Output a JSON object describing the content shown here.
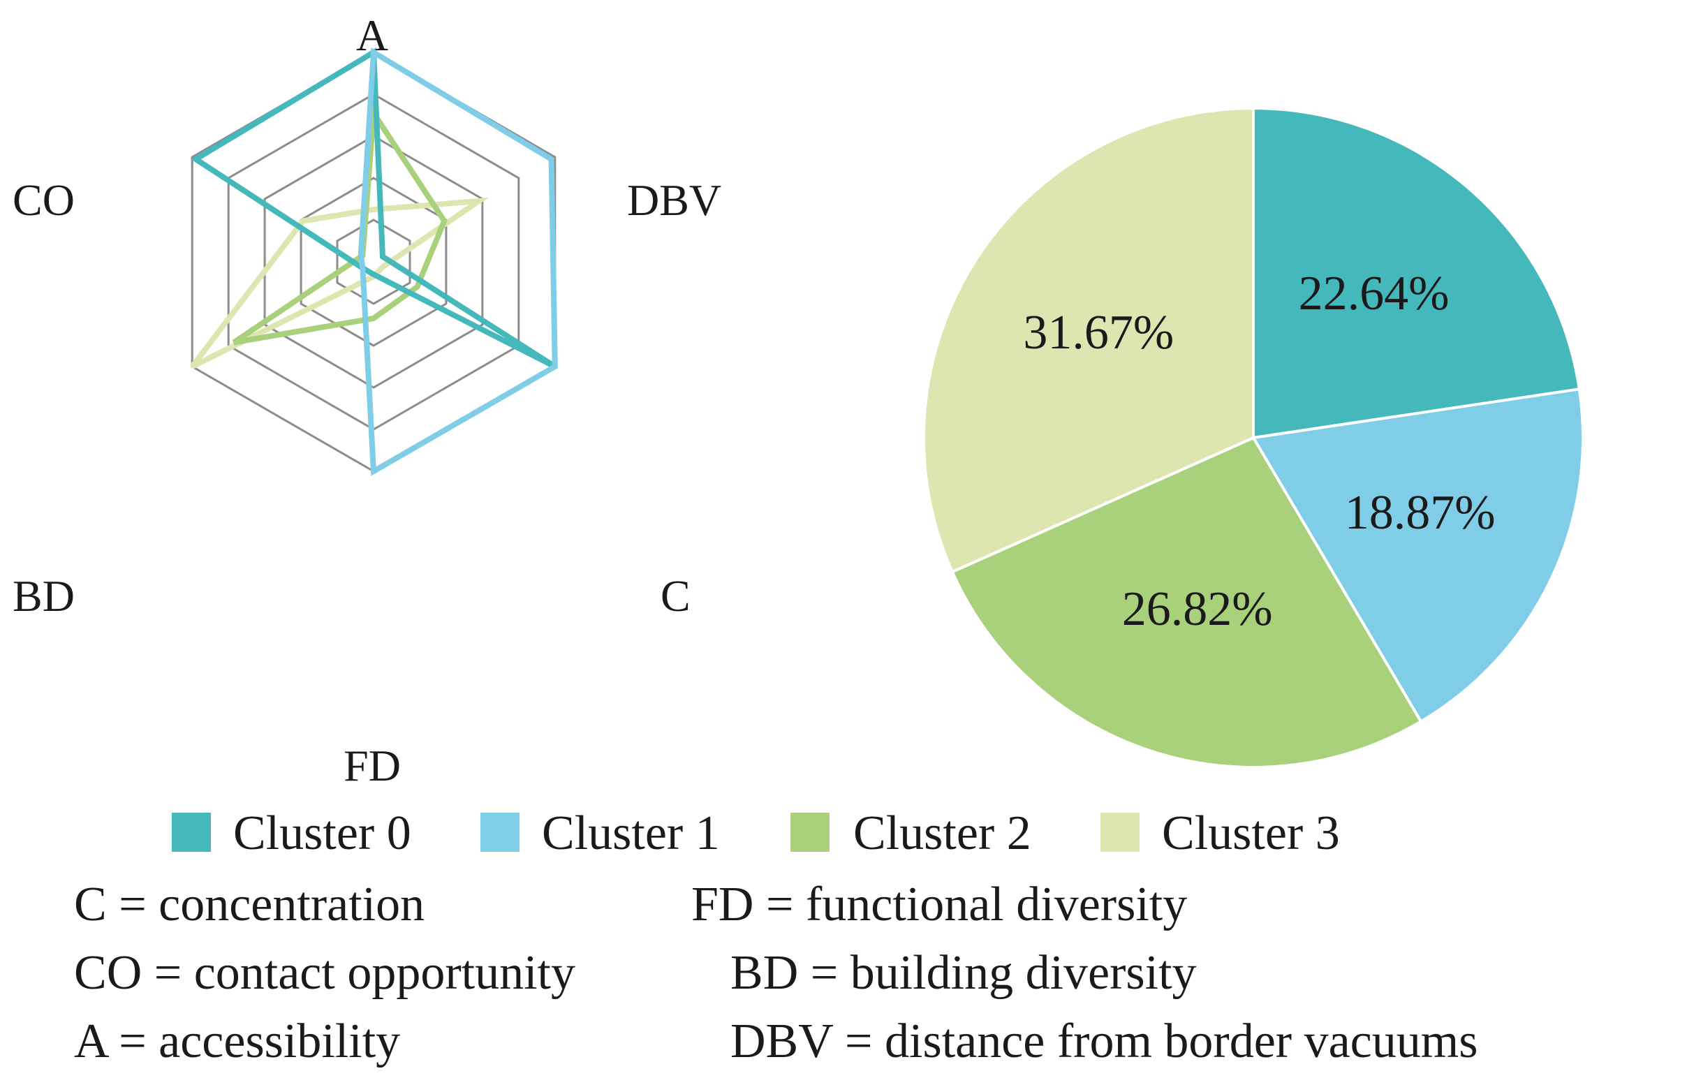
{
  "chart_data": [
    {
      "type": "radar",
      "axes": [
        "A",
        "DBV",
        "C",
        "FD",
        "BD",
        "CO"
      ],
      "rlim": [
        0,
        1
      ],
      "rings": 5,
      "series": [
        {
          "name": "Cluster 0",
          "color": "#45B8BB",
          "values": [
            1.0,
            0.05,
            1.0,
            0.06,
            0.06,
            0.98
          ]
        },
        {
          "name": "Cluster 1",
          "color": "#7FCDE6",
          "values": [
            1.0,
            0.98,
            1.0,
            1.0,
            0.06,
            0.07
          ]
        },
        {
          "name": "Cluster 2",
          "color": "#A9D07A",
          "values": [
            0.71,
            0.39,
            0.24,
            0.27,
            0.77,
            0.06
          ]
        },
        {
          "name": "Cluster 3",
          "color": "#DDE6B0",
          "values": [
            0.25,
            0.58,
            0.05,
            0.07,
            1.0,
            0.39
          ]
        }
      ]
    },
    {
      "type": "pie",
      "start_angle_deg": 0,
      "direction": "clockwise",
      "slices": [
        {
          "name": "Cluster 0",
          "value": 22.64,
          "label": "22.64%",
          "color": "#45B8BB"
        },
        {
          "name": "Cluster 1",
          "value": 18.87,
          "label": "18.87%",
          "color": "#7FCDE6"
        },
        {
          "name": "Cluster 2",
          "value": 26.82,
          "label": "26.82%",
          "color": "#A9D07A"
        },
        {
          "name": "Cluster 3",
          "value": 31.67,
          "label": "31.67%",
          "color": "#DDE6B0"
        }
      ]
    }
  ],
  "legend": [
    {
      "label": "Cluster 0",
      "color": "#45B8BB"
    },
    {
      "label": "Cluster 1",
      "color": "#7FCDE6"
    },
    {
      "label": "Cluster 2",
      "color": "#A9D07A"
    },
    {
      "label": "Cluster 3",
      "color": "#DDE6B0"
    }
  ],
  "definitions": [
    {
      "text": "C = concentration"
    },
    {
      "text": "FD = functional diversity"
    },
    {
      "text": "CO = contact opportunity"
    },
    {
      "text": "BD = building diversity"
    },
    {
      "text": "A = accessibility"
    },
    {
      "text": "DBV = distance from border vacuums"
    }
  ],
  "colors": {
    "grid": "#8C8C8C",
    "pie_border": "#ffffff",
    "text": "#1a1a1a"
  }
}
